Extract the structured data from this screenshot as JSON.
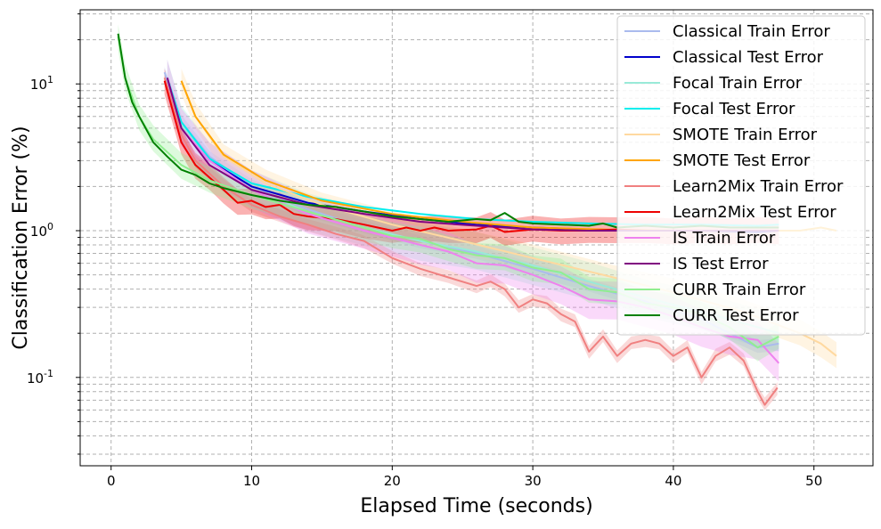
{
  "chart_data": {
    "type": "line",
    "title": "",
    "xlabel": "Elapsed Time (seconds)",
    "ylabel": "Classification Error (%)",
    "yscale": "log",
    "xlim": [
      -2.2,
      54.2
    ],
    "ylim": [
      0.025,
      32
    ],
    "xticks": [
      0,
      10,
      20,
      30,
      40,
      50
    ],
    "xtick_labels": [
      "0",
      "10",
      "20",
      "30",
      "40",
      "50"
    ],
    "yticks": [
      0.1,
      1,
      10
    ],
    "ytick_labels": [
      "10^-1",
      "10^0",
      "10^1"
    ],
    "grid": true,
    "legend_position": "top-right",
    "series": [
      {
        "name": "Classical Train Error",
        "color": "#aabbee",
        "band": true,
        "x": [
          3.8,
          5,
          7,
          10,
          14,
          18,
          22,
          26,
          30,
          34,
          38,
          42,
          44,
          46,
          47.5
        ],
        "y": [
          12,
          5.5,
          3.2,
          2.0,
          1.4,
          1.05,
          0.85,
          0.7,
          0.55,
          0.42,
          0.33,
          0.25,
          0.2,
          0.16,
          0.17
        ]
      },
      {
        "name": "Classical Test Error",
        "color": "#0000cc",
        "band": false,
        "x": [
          4,
          5,
          7,
          10,
          14,
          18,
          22,
          26,
          30,
          34,
          38,
          42,
          46,
          47.5
        ],
        "y": [
          11,
          5,
          3.0,
          2.0,
          1.55,
          1.35,
          1.2,
          1.1,
          1.05,
          1.02,
          1.0,
          1.0,
          0.98,
          1.0
        ]
      },
      {
        "name": "Focal Train Error",
        "color": "#99ead8",
        "band": true,
        "x": [
          4,
          5,
          7,
          10,
          14,
          18,
          22,
          26,
          30,
          34,
          38,
          42,
          46,
          47.5
        ],
        "y": [
          11,
          5.2,
          3.0,
          1.9,
          1.35,
          1.05,
          0.85,
          0.72,
          0.58,
          0.45,
          0.35,
          0.28,
          0.22,
          0.2
        ]
      },
      {
        "name": "Focal Test Error",
        "color": "#00eeee",
        "band": false,
        "x": [
          4,
          5,
          7,
          10,
          14,
          18,
          22,
          26,
          30,
          34,
          38,
          42,
          46,
          47.5
        ],
        "y": [
          11,
          5.5,
          3.1,
          2.1,
          1.7,
          1.45,
          1.3,
          1.2,
          1.15,
          1.12,
          1.1,
          1.1,
          1.08,
          1.1
        ]
      },
      {
        "name": "SMOTE Train Error",
        "color": "#ffd9a0",
        "band": true,
        "x": [
          5,
          6,
          8,
          11,
          15,
          20,
          25,
          30,
          35,
          40,
          45,
          49,
          50.5,
          51.6
        ],
        "y": [
          10.5,
          6,
          3.2,
          2.1,
          1.5,
          1.1,
          0.85,
          0.65,
          0.5,
          0.38,
          0.28,
          0.2,
          0.17,
          0.14
        ]
      },
      {
        "name": "SMOTE Test Error",
        "color": "#ffa500",
        "band": false,
        "x": [
          5,
          6,
          8,
          11,
          15,
          20,
          25,
          30,
          35,
          40,
          45,
          49,
          50.5,
          51.6
        ],
        "y": [
          10.5,
          6,
          3.3,
          2.2,
          1.6,
          1.3,
          1.15,
          1.05,
          1.02,
          1.0,
          1.0,
          1.0,
          1.05,
          1.0
        ]
      },
      {
        "name": "Learn2Mix Train Error",
        "color": "#f08080",
        "band": true,
        "x": [
          3.8,
          5,
          6,
          8,
          10,
          12,
          14,
          16,
          18,
          20,
          22,
          24,
          26,
          27,
          28,
          29,
          30,
          31,
          32,
          33,
          34,
          35,
          36,
          37,
          38,
          39,
          40,
          41,
          42,
          43,
          44,
          45,
          46,
          46.5,
          47.4
        ],
        "y": [
          11,
          4.5,
          3.0,
          2.0,
          1.5,
          1.25,
          1.1,
          0.95,
          0.85,
          0.65,
          0.55,
          0.48,
          0.42,
          0.45,
          0.4,
          0.3,
          0.34,
          0.32,
          0.27,
          0.24,
          0.15,
          0.19,
          0.14,
          0.17,
          0.18,
          0.17,
          0.14,
          0.16,
          0.1,
          0.14,
          0.16,
          0.13,
          0.08,
          0.065,
          0.085
        ]
      },
      {
        "name": "Learn2Mix Test Error",
        "color": "#ee0000",
        "band": true,
        "x": [
          3.8,
          5,
          6,
          7,
          8,
          9,
          10,
          11,
          12,
          13,
          14,
          16,
          18,
          20,
          21,
          22,
          23,
          24,
          26,
          27,
          28,
          30,
          32,
          34,
          36,
          38,
          40,
          42,
          44,
          46,
          47.5
        ],
        "y": [
          10.5,
          4.0,
          2.8,
          2.3,
          1.9,
          1.55,
          1.6,
          1.45,
          1.5,
          1.3,
          1.25,
          1.2,
          1.1,
          1.0,
          1.05,
          1.0,
          1.05,
          1.0,
          1.02,
          1.08,
          0.98,
          1.02,
          1.0,
          1.0,
          1.02,
          1.0,
          1.0,
          1.0,
          1.0,
          1.0,
          1.0
        ]
      },
      {
        "name": "IS Train Error",
        "color": "#ee82ee",
        "band": true,
        "x": [
          4,
          5,
          7,
          10,
          14,
          18,
          22,
          24,
          26,
          28,
          30,
          32,
          34,
          36,
          38,
          40,
          42,
          44,
          46,
          47.5
        ],
        "y": [
          11,
          5,
          3.0,
          1.9,
          1.3,
          1.0,
          0.8,
          0.72,
          0.6,
          0.58,
          0.5,
          0.42,
          0.34,
          0.33,
          0.3,
          0.26,
          0.22,
          0.19,
          0.18,
          0.125
        ]
      },
      {
        "name": "IS Test Error",
        "color": "#800080",
        "band": false,
        "x": [
          4,
          5,
          7,
          10,
          14,
          18,
          22,
          26,
          30,
          34,
          38,
          42,
          46,
          47.5
        ],
        "y": [
          11,
          5,
          2.8,
          1.9,
          1.5,
          1.3,
          1.15,
          1.08,
          1.02,
          1.0,
          1.0,
          1.0,
          1.0,
          1.0
        ]
      },
      {
        "name": "CURR Train Error",
        "color": "#90ee90",
        "band": true,
        "x": [
          0.5,
          1,
          2,
          3,
          5,
          7,
          10,
          14,
          18,
          20,
          22,
          24,
          26,
          28,
          30,
          32,
          34,
          36,
          38,
          40,
          42,
          44,
          46,
          47.5
        ],
        "y": [
          21,
          11,
          6,
          4.2,
          2.8,
          2.2,
          1.75,
          1.35,
          1.05,
          0.92,
          0.88,
          0.75,
          0.68,
          0.65,
          0.56,
          0.52,
          0.4,
          0.38,
          0.32,
          0.3,
          0.27,
          0.22,
          0.16,
          0.19
        ]
      },
      {
        "name": "CURR Test Error",
        "color": "#008000",
        "band": false,
        "x": [
          0.5,
          1,
          1.5,
          2,
          3,
          4,
          5,
          6,
          7,
          8,
          10,
          12,
          14,
          16,
          18,
          20,
          22,
          24,
          26,
          27,
          28,
          29,
          30,
          32,
          34,
          35,
          36,
          38,
          40,
          42,
          44,
          46,
          47.5
        ],
        "y": [
          22,
          11,
          7.5,
          6,
          4.0,
          3.2,
          2.6,
          2.4,
          2.1,
          1.95,
          1.75,
          1.6,
          1.5,
          1.45,
          1.35,
          1.25,
          1.2,
          1.15,
          1.2,
          1.18,
          1.32,
          1.15,
          1.12,
          1.1,
          1.08,
          1.12,
          1.05,
          1.08,
          1.05,
          1.08,
          1.05,
          1.05,
          1.05
        ]
      }
    ]
  }
}
